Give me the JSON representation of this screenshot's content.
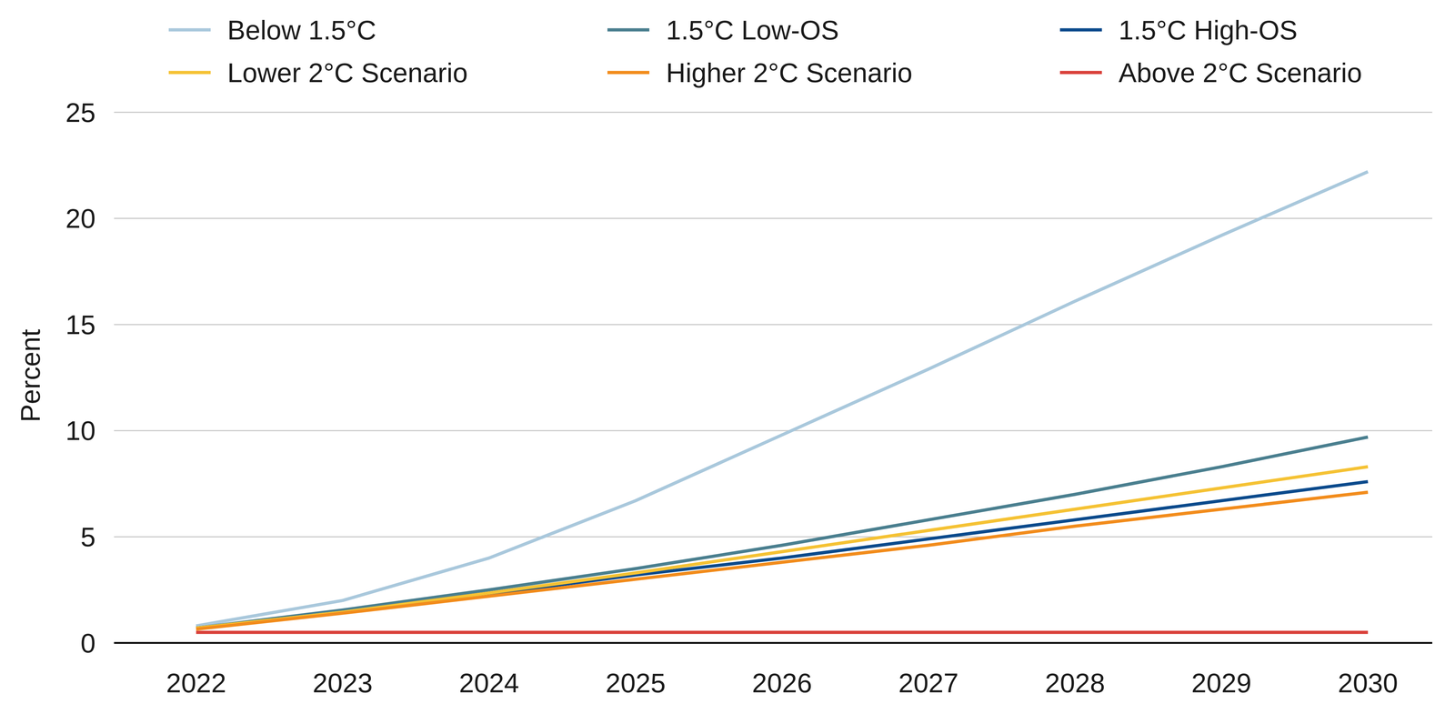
{
  "chart_data": {
    "type": "line",
    "y_label": "Percent",
    "categories": [
      "2022",
      "2023",
      "2024",
      "2025",
      "2026",
      "2027",
      "2028",
      "2029",
      "2030"
    ],
    "series": [
      {
        "name": "Below 1.5°C",
        "color": "#a9c8dc",
        "values": [
          0.8,
          2.0,
          4.0,
          6.7,
          9.8,
          12.9,
          16.1,
          19.2,
          22.2
        ]
      },
      {
        "name": "1.5°C Low-OS",
        "color": "#4a7f8f",
        "values": [
          0.7,
          1.55,
          2.5,
          3.5,
          4.6,
          5.8,
          7.0,
          8.3,
          9.7
        ]
      },
      {
        "name": "1.5°C High-OS",
        "color": "#0a4a8c",
        "values": [
          0.7,
          1.45,
          2.3,
          3.2,
          4.0,
          4.9,
          5.8,
          6.7,
          7.6
        ]
      },
      {
        "name": "Lower 2°C Scenario",
        "color": "#f5c234",
        "values": [
          0.7,
          1.45,
          2.35,
          3.3,
          4.3,
          5.3,
          6.3,
          7.3,
          8.3
        ]
      },
      {
        "name": "Higher 2°C Scenario",
        "color": "#f28c1c",
        "values": [
          0.65,
          1.4,
          2.2,
          3.0,
          3.8,
          4.6,
          5.5,
          6.3,
          7.1
        ]
      },
      {
        "name": "Above 2°C Scenario",
        "color": "#d9403a",
        "values": [
          0.5,
          0.5,
          0.5,
          0.5,
          0.5,
          0.5,
          0.5,
          0.5,
          0.5
        ]
      }
    ],
    "ylim": [
      0,
      25
    ],
    "yticks": [
      0,
      5,
      10,
      15,
      20,
      25
    ],
    "grid": true,
    "legend": "top"
  }
}
